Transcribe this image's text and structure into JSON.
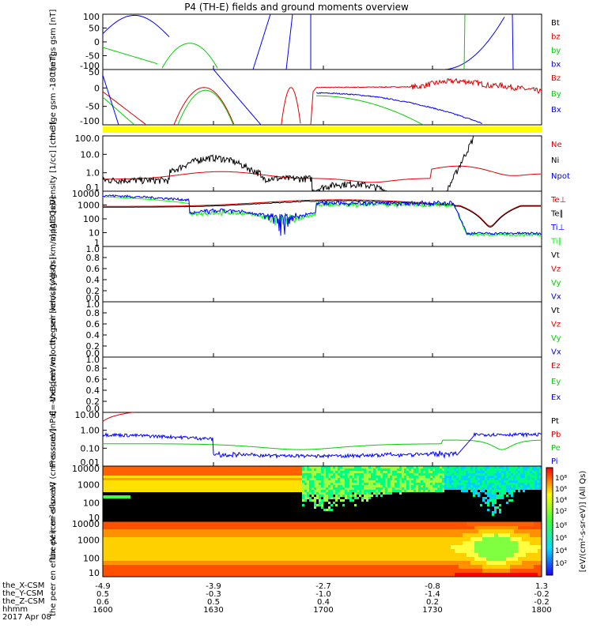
{
  "title": "P4 (TH-E) fields and ground moments overview",
  "date_label": "2017 Apr 08",
  "footer_rows": [
    {
      "name": "the_X-CSM",
      "values": [
        "-4.9",
        "-3.9",
        "-2.7",
        "-0.8",
        "1.3"
      ]
    },
    {
      "name": "the_Y-CSM",
      "values": [
        "0.5",
        "-0.3",
        "-1.0",
        "-1.4",
        "-0.2"
      ]
    },
    {
      "name": "the_Z-CSM",
      "values": [
        "0.6",
        "0.5",
        "0.4",
        "0.2",
        "-0.2"
      ]
    },
    {
      "name": "hhmm",
      "values": [
        "1600",
        "1630",
        "1700",
        "1730",
        "1800"
      ]
    }
  ],
  "colors": {
    "black": "#000000",
    "red": "#e00000",
    "green": "#00d000",
    "blue": "#0000ff",
    "yellow": "#ffff00",
    "lightgreen": "#00ff00"
  },
  "chart_data": [
    {
      "type": "line",
      "ylabel": "the fgs gsm [nT]",
      "yticks": [
        "100",
        "50",
        "0",
        "-50",
        "-100"
      ],
      "ylim": [
        -100,
        100
      ],
      "legend": [
        {
          "name": "Bt",
          "color": "black"
        },
        {
          "name": "bz",
          "color": "red"
        },
        {
          "name": "by",
          "color": "green"
        },
        {
          "name": "bx",
          "color": "blue"
        }
      ]
    },
    {
      "type": "line",
      "ylabel": "the fge gsm -180 [nT]",
      "yticks": [
        "50",
        "0",
        "-50",
        "-100"
      ],
      "ylim": [
        -120,
        80
      ],
      "legend": [
        {
          "name": "Bz",
          "color": "red"
        },
        {
          "name": "By",
          "color": "green"
        },
        {
          "name": "Bx",
          "color": "blue"
        }
      ]
    },
    {
      "type": "line",
      "ylabel": "Density [1/cc] [cm-3]",
      "yticks": [
        "100.0",
        "10.0",
        "1.0",
        "0.1"
      ],
      "log": true,
      "legend": [
        {
          "name": "Ne",
          "color": "red"
        },
        {
          "name": "Ni",
          "color": "black"
        },
        {
          "name": "Npot",
          "color": "blue"
        }
      ]
    },
    {
      "type": "line",
      "ylabel": "mpgt3 [eV]",
      "yticks": [
        "10000",
        "1000",
        "100",
        "10",
        "1"
      ],
      "log": true,
      "legend": [
        {
          "name": "Te⊥",
          "color": "red"
        },
        {
          "name": "Te∥",
          "color": "black"
        },
        {
          "name": "Ti⊥",
          "color": "blue"
        },
        {
          "name": "Ti∥",
          "color": "lightgreen"
        }
      ]
    },
    {
      "type": "line",
      "ylabel": "the peir velocity gsm [km/s] (All Qs)",
      "yticks": [
        "1.0",
        "0.8",
        "0.6",
        "0.4",
        "0.2",
        "0.0"
      ],
      "ylim": [
        0,
        1
      ],
      "legend": [
        {
          "name": "Vt",
          "color": "black"
        },
        {
          "name": "Vz",
          "color": "red"
        },
        {
          "name": "Vy",
          "color": "green"
        },
        {
          "name": "Vx",
          "color": "blue"
        }
      ]
    },
    {
      "type": "line",
      "ylabel": "the peer velocity gsm [km/s] (All Qs)",
      "yticks": [
        "1.0",
        "0.8",
        "0.6",
        "0.4",
        "0.2",
        "0.0"
      ],
      "ylim": [
        0,
        1
      ],
      "legend": [
        {
          "name": "Vt",
          "color": "black"
        },
        {
          "name": "Vz",
          "color": "red"
        },
        {
          "name": "Vy",
          "color": "green"
        },
        {
          "name": "Vx",
          "color": "blue"
        }
      ]
    },
    {
      "type": "line",
      "ylabel": "E=-VxB [mV/m]",
      "yticks": [
        "1.0",
        "0.8",
        "0.6",
        "0.4",
        "0.2",
        "0.0"
      ],
      "ylim": [
        0,
        1
      ],
      "legend": [
        {
          "name": "Ez",
          "color": "red"
        },
        {
          "name": "Ey",
          "color": "green"
        },
        {
          "name": "Ex",
          "color": "blue"
        }
      ]
    },
    {
      "type": "line",
      "ylabel": "Pressure [nPa]",
      "yticks": [
        "10.00",
        "1.00",
        "0.10",
        "0.01"
      ],
      "log": true,
      "legend": [
        {
          "name": "Pt",
          "color": "black"
        },
        {
          "name": "Pb",
          "color": "red"
        },
        {
          "name": "Pe",
          "color": "green"
        },
        {
          "name": "Pi",
          "color": "blue"
        }
      ]
    },
    {
      "type": "heatmap",
      "ylabel": "the peir en eflux eV (cm²-s-sr-eV)",
      "yticks": [
        "10000",
        "1000",
        "100",
        "10"
      ],
      "log": true
    },
    {
      "type": "heatmap",
      "ylabel": "the peer en eflux eV (cm²-s-sr-eV)",
      "yticks": [
        "10000",
        "1000",
        "100",
        "10"
      ],
      "log": true
    }
  ],
  "colorbar": {
    "label": "[eV/(cm²-s-sr-eV)] (All Qs)",
    "ticks_upper": [
      "10⁸",
      "10⁶",
      "10⁴",
      "10²"
    ],
    "ticks_lower": [
      "10⁸",
      "10⁶",
      "10⁴",
      "10²"
    ]
  },
  "xaxis": {
    "hhmm": [
      "1600",
      "1630",
      "1700",
      "1730",
      "1800"
    ]
  }
}
